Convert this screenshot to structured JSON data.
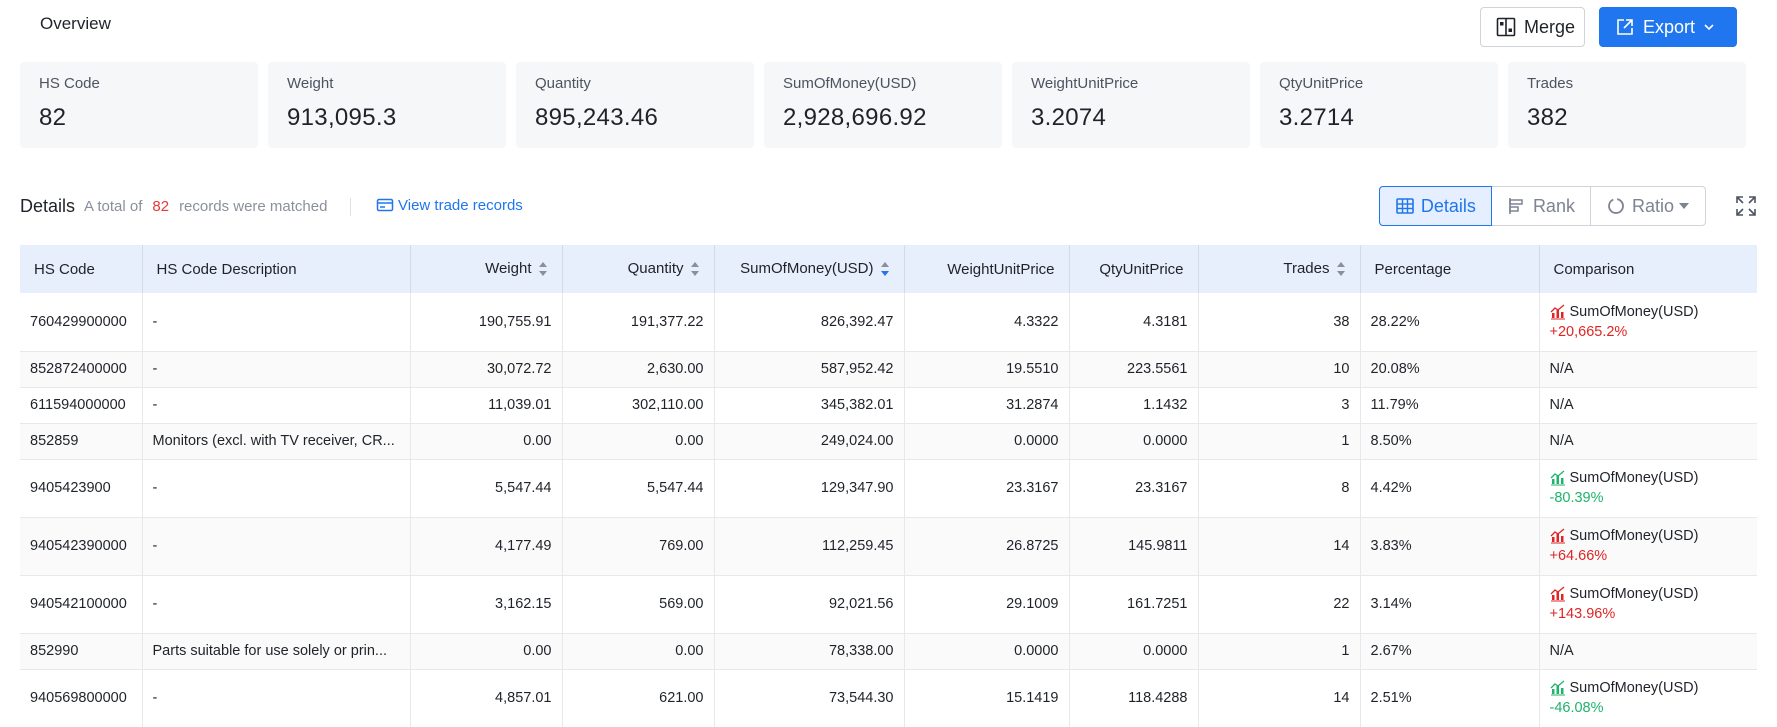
{
  "header": {
    "title": "Overview",
    "merge_label": "Merge",
    "export_label": "Export"
  },
  "stats": [
    {
      "label": "HS Code",
      "value": "82"
    },
    {
      "label": "Weight",
      "value": "913,095.3"
    },
    {
      "label": "Quantity",
      "value": "895,243.46"
    },
    {
      "label": "SumOfMoney(USD)",
      "value": "2,928,696.92"
    },
    {
      "label": "WeightUnitPrice",
      "value": "3.2074"
    },
    {
      "label": "QtyUnitPrice",
      "value": "3.2714"
    },
    {
      "label": "Trades",
      "value": "382"
    }
  ],
  "details": {
    "title": "Details",
    "matched_prefix": "A total of",
    "matched_count": "82",
    "matched_suffix": "records were matched",
    "view_records_label": "View trade records",
    "view_tabs": {
      "details": "Details",
      "rank": "Rank",
      "ratio": "Ratio"
    }
  },
  "table": {
    "columns": {
      "hs_code": "HS Code",
      "desc": "HS Code Description",
      "weight": "Weight",
      "quantity": "Quantity",
      "sum": "SumOfMoney(USD)",
      "wup": "WeightUnitPrice",
      "qup": "QtyUnitPrice",
      "trades": "Trades",
      "percentage": "Percentage",
      "comparison": "Comparison"
    },
    "rows": [
      {
        "hs": "760429900000",
        "desc": "-",
        "weight": "190,755.91",
        "qty": "191,377.22",
        "sum": "826,392.47",
        "wup": "4.3322",
        "qup": "4.3181",
        "trades": "38",
        "pct": "28.22%",
        "cmp_label": "SumOfMoney(USD)",
        "cmp_value": "+20,665.2%",
        "trend": "up"
      },
      {
        "hs": "852872400000",
        "desc": "-",
        "weight": "30,072.72",
        "qty": "2,630.00",
        "sum": "587,952.42",
        "wup": "19.5510",
        "qup": "223.5561",
        "trades": "10",
        "pct": "20.08%",
        "cmp_label": "N/A",
        "cmp_value": "",
        "trend": "none"
      },
      {
        "hs": "611594000000",
        "desc": "-",
        "weight": "11,039.01",
        "qty": "302,110.00",
        "sum": "345,382.01",
        "wup": "31.2874",
        "qup": "1.1432",
        "trades": "3",
        "pct": "11.79%",
        "cmp_label": "N/A",
        "cmp_value": "",
        "trend": "none"
      },
      {
        "hs": "852859",
        "desc": "Monitors (excl. with TV receiver, CR...",
        "weight": "0.00",
        "qty": "0.00",
        "sum": "249,024.00",
        "wup": "0.0000",
        "qup": "0.0000",
        "trades": "1",
        "pct": "8.50%",
        "cmp_label": "N/A",
        "cmp_value": "",
        "trend": "none"
      },
      {
        "hs": "9405423900",
        "desc": "-",
        "weight": "5,547.44",
        "qty": "5,547.44",
        "sum": "129,347.90",
        "wup": "23.3167",
        "qup": "23.3167",
        "trades": "8",
        "pct": "4.42%",
        "cmp_label": "SumOfMoney(USD)",
        "cmp_value": "-80.39%",
        "trend": "down"
      },
      {
        "hs": "940542390000",
        "desc": "-",
        "weight": "4,177.49",
        "qty": "769.00",
        "sum": "112,259.45",
        "wup": "26.8725",
        "qup": "145.9811",
        "trades": "14",
        "pct": "3.83%",
        "cmp_label": "SumOfMoney(USD)",
        "cmp_value": "+64.66%",
        "trend": "up"
      },
      {
        "hs": "940542100000",
        "desc": "-",
        "weight": "3,162.15",
        "qty": "569.00",
        "sum": "92,021.56",
        "wup": "29.1009",
        "qup": "161.7251",
        "trades": "22",
        "pct": "3.14%",
        "cmp_label": "SumOfMoney(USD)",
        "cmp_value": "+143.96%",
        "trend": "up"
      },
      {
        "hs": "852990",
        "desc": "Parts suitable for use solely or prin...",
        "weight": "0.00",
        "qty": "0.00",
        "sum": "78,338.00",
        "wup": "0.0000",
        "qup": "0.0000",
        "trades": "1",
        "pct": "2.67%",
        "cmp_label": "N/A",
        "cmp_value": "",
        "trend": "none"
      },
      {
        "hs": "940569800000",
        "desc": "-",
        "weight": "4,857.01",
        "qty": "621.00",
        "sum": "73,544.30",
        "wup": "15.1419",
        "qup": "118.4288",
        "trades": "14",
        "pct": "2.51%",
        "cmp_label": "SumOfMoney(USD)",
        "cmp_value": "-46.08%",
        "trend": "down"
      }
    ]
  },
  "colors": {
    "accent": "#1f76ee",
    "up": "#e02424",
    "down": "#1fb36b",
    "count": "#e63a3a"
  }
}
